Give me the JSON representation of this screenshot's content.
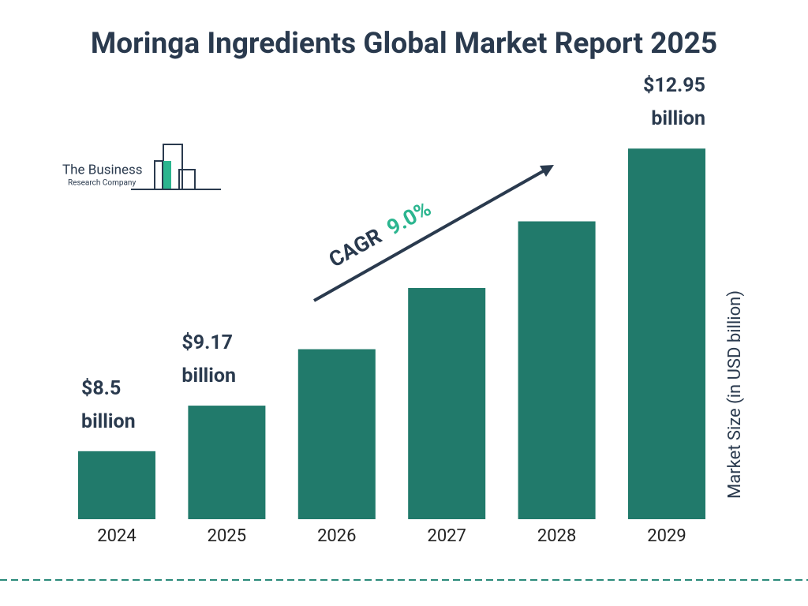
{
  "chart_data": {
    "type": "bar",
    "title": "Moringa Ingredients Global Market Report 2025",
    "categories": [
      "2024",
      "2025",
      "2026",
      "2027",
      "2028",
      "2029"
    ],
    "values": [
      8.5,
      9.17,
      10.0,
      10.9,
      11.88,
      12.95
    ],
    "value_labels": [
      "$8.5 billion",
      "$9.17 billion",
      null,
      null,
      null,
      "$12.95 billion"
    ],
    "color": "#217a6b",
    "ylim": [
      7.5,
      13.0
    ],
    "y_axis_label": "Market Size (in USD billion)",
    "annotation": {
      "label": "CAGR",
      "value": "9.0%"
    },
    "logo": {
      "line1": "The Business",
      "line2": "Research Company"
    }
  }
}
